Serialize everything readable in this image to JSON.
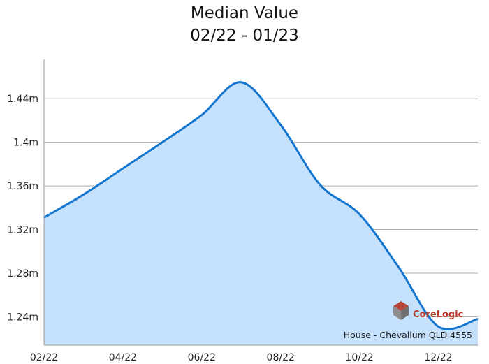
{
  "chart_data": {
    "type": "area",
    "title": "Median Value",
    "subtitle": "02/22 - 01/23",
    "x": [
      "02/22",
      "03/22",
      "04/22",
      "05/22",
      "06/22",
      "07/22",
      "08/22",
      "09/22",
      "10/22",
      "11/22",
      "12/22",
      "01/23"
    ],
    "x_tick_labels": [
      "02/22",
      "04/22",
      "06/22",
      "08/22",
      "10/22",
      "12/22"
    ],
    "y_tick_labels": [
      "1.24m",
      "1.28m",
      "1.32m",
      "1.36m",
      "1.4m",
      "1.44m"
    ],
    "y_ticks": [
      1.24,
      1.28,
      1.32,
      1.36,
      1.4,
      1.44
    ],
    "ylim": [
      1.214,
      1.476
    ],
    "series": [
      {
        "values": [
          1.331,
          1.352,
          1.376,
          1.4,
          1.425,
          1.455,
          1.416,
          1.361,
          1.334,
          1.285,
          1.231,
          1.238
        ]
      }
    ],
    "grid": true,
    "line_color": "#1576d0",
    "fill_color": "#c5e1fb",
    "annotation": "House - Chevallum QLD 4555",
    "watermark": "CoreLogic"
  }
}
